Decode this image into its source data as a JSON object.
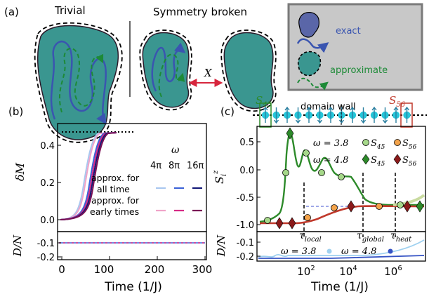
{
  "panels": {
    "a": {
      "label": "(a)",
      "trivial_title": "Trivial",
      "broken_title": "Symmetry broken",
      "transform_label": "X",
      "legend": {
        "exact": "exact",
        "approximate": "approximate"
      },
      "colors": {
        "blob_fill": "#3a9690",
        "exact_path": "#3a55b0",
        "approx_path": "#1d8a37",
        "legend_bg": "#c8c8c8",
        "arrow": "#d7263d"
      }
    },
    "b": {
      "label": "(b)",
      "ylabel_top": "δM",
      "ylabel_bottom": "D/N",
      "xlabel": "Time (1/J)",
      "omega_label": "ω",
      "omega_values": [
        "4π",
        "8π",
        "16π"
      ],
      "legend_all": [
        "approx. for",
        "all time"
      ],
      "legend_early": [
        "approx. for",
        "early times"
      ],
      "x_ticks": [
        "0",
        "100",
        "200",
        "300"
      ],
      "y_ticks_top": [
        "0.0",
        "0.2",
        "0.4"
      ],
      "y_ticks_bottom": [
        "-0.1",
        "-0.2"
      ],
      "colors": {
        "all_time": [
          "#a9c7ef",
          "#3c63d8",
          "#141a78"
        ],
        "early": [
          "#f0a3c8",
          "#d62a85",
          "#7a1055"
        ]
      }
    },
    "c": {
      "label": "(c)",
      "domain_wall_label": "domain wall",
      "s45_label": "S",
      "s45_sub": "45",
      "s56_label": "S",
      "s56_sub": "56",
      "ylabel_top": "S",
      "ylabel_top_sub": "i",
      "ylabel_top_sup": "z",
      "ylabel_bottom": "D/N",
      "xlabel": "Time (1/J)",
      "legend_rows": [
        {
          "omega": "ω = 3.8",
          "s45": "S",
          "s45_sub": "45",
          "s56": "S",
          "s56_sub": "56"
        },
        {
          "omega": "ω = 4.8",
          "s45": "S",
          "s45_sub": "45",
          "s56": "S",
          "s56_sub": "56"
        }
      ],
      "times": [
        "τ",
        "τ",
        "τ"
      ],
      "time_subs": [
        "local",
        "global",
        "heat"
      ],
      "x_ticks": [
        "10",
        "10",
        "10"
      ],
      "x_ticks_exp": [
        "2",
        "4",
        "6"
      ],
      "y_ticks_top": [
        "0.5",
        "0.0",
        "-0.5",
        "-1.0"
      ],
      "y_ticks_bottom": [
        "-0.1",
        "-0.2"
      ],
      "bottom_legend": [
        "ω = 3.8",
        "ω = 4.8"
      ],
      "colors": {
        "green": "#2d8a2a",
        "red": "#c0392b",
        "blue": "#3452c4",
        "lightblue": "#9fd1f0",
        "spin": "#26c6d9"
      }
    }
  }
}
